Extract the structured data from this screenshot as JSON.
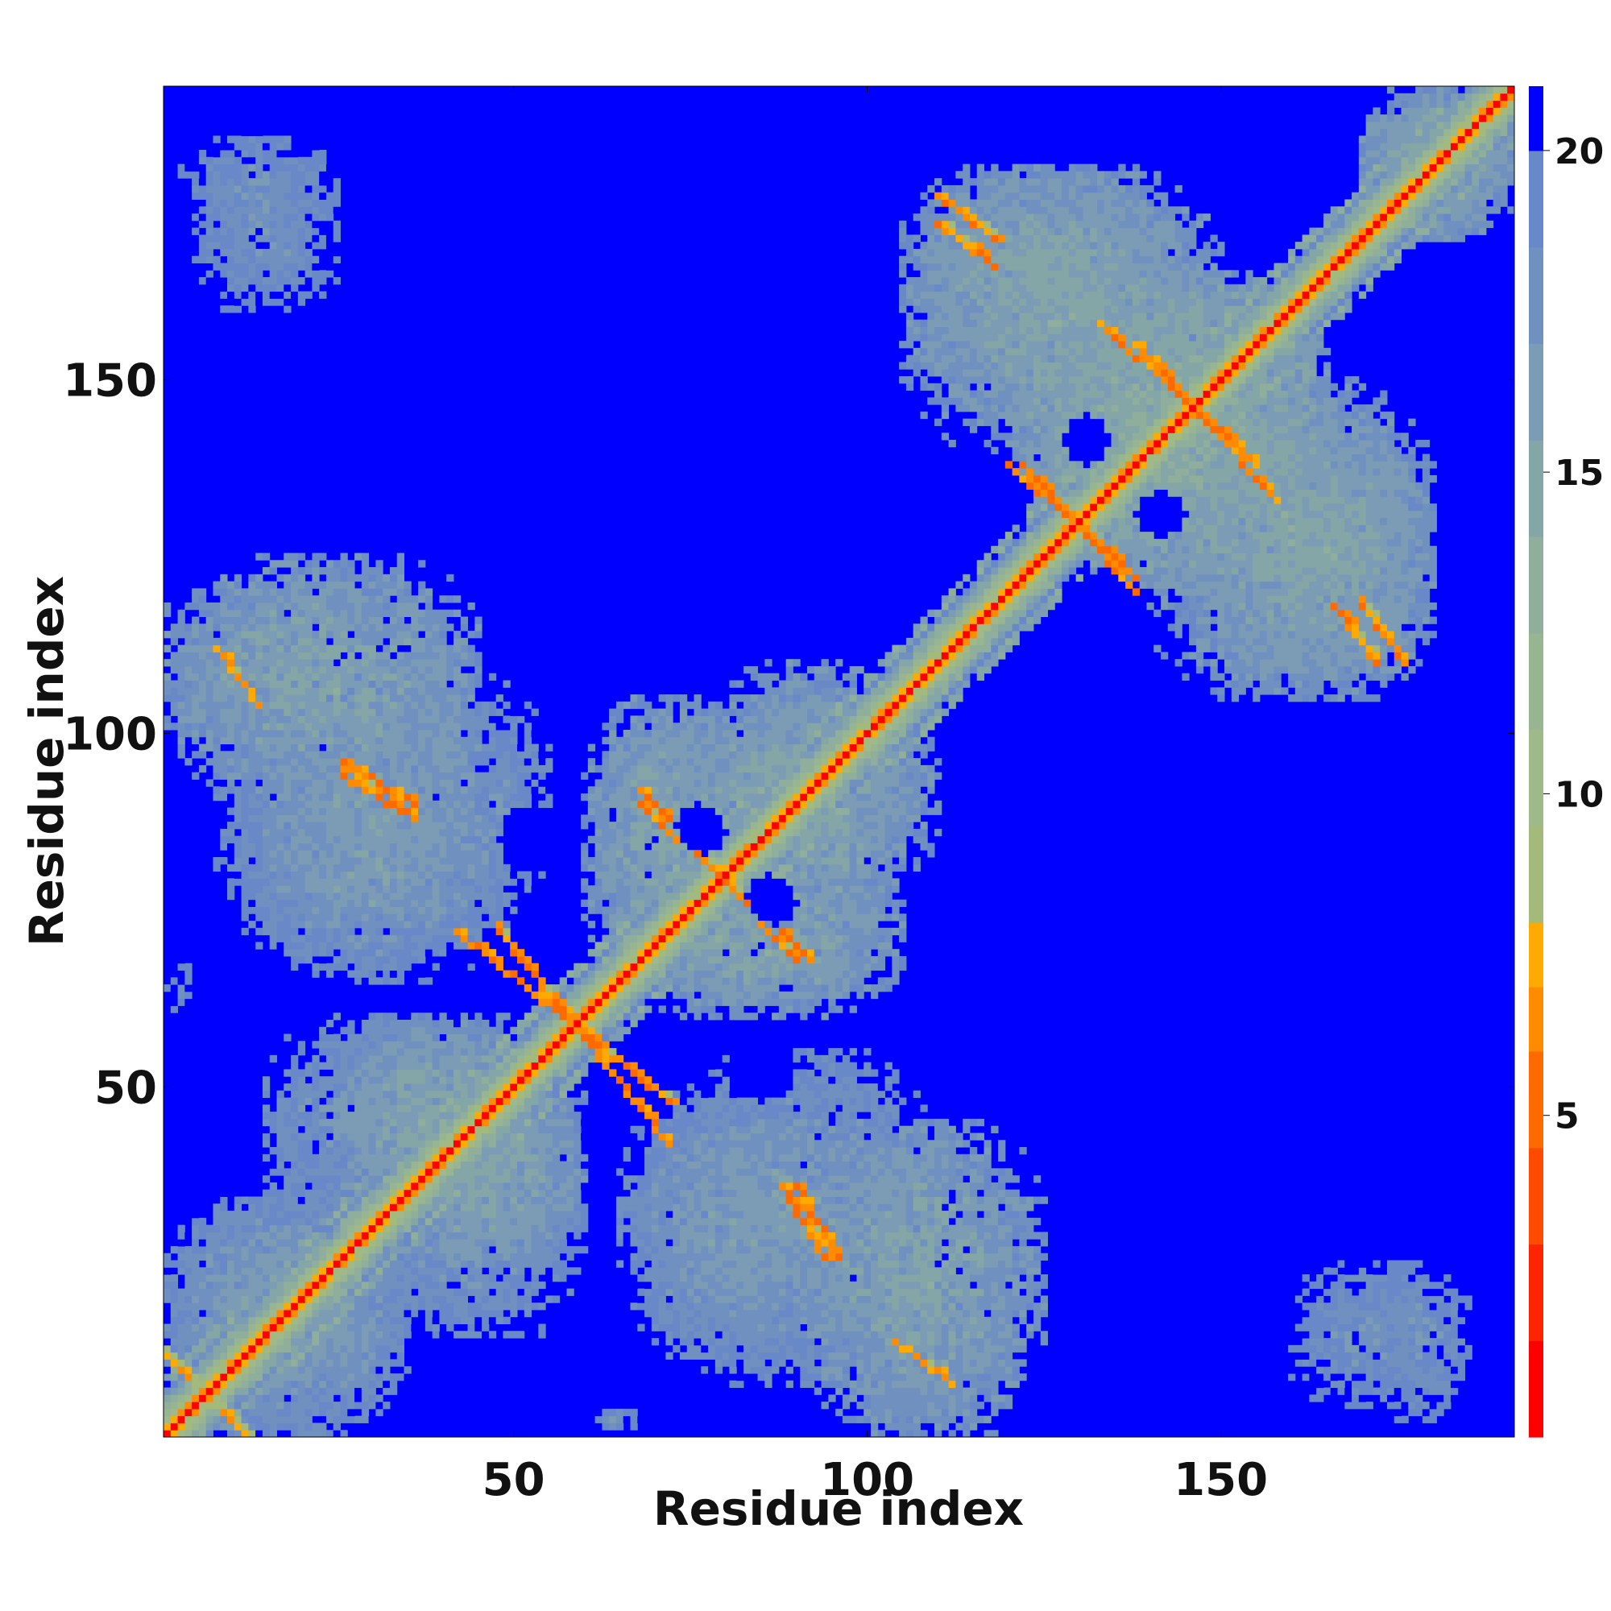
{
  "chart_data": {
    "type": "heatmap",
    "description_kind": "residue contact distance map",
    "xlabel": "Residue index",
    "ylabel": "Residue index",
    "xlim": [
      1,
      191
    ],
    "ylim": [
      1,
      191
    ],
    "n_residues": 191,
    "x_ticks": [
      50,
      100,
      150
    ],
    "y_ticks": [
      50,
      100,
      150
    ],
    "x_tick_labels": [
      "50",
      "100",
      "150"
    ],
    "y_tick_labels": [
      "50",
      "100",
      "150"
    ],
    "colorbar": {
      "range": [
        0,
        21
      ],
      "ticks": [
        5,
        10,
        15,
        20
      ],
      "tick_labels": [
        "5",
        "10",
        "15",
        "20"
      ],
      "levels": [
        {
          "max": 1.5,
          "color": "#ff0000"
        },
        {
          "max": 3,
          "color": "#ff2400"
        },
        {
          "max": 4.5,
          "color": "#ff4b00"
        },
        {
          "max": 6,
          "color": "#ff6a00"
        },
        {
          "max": 7,
          "color": "#ff8c00"
        },
        {
          "max": 8,
          "color": "#ffaa00"
        },
        {
          "max": 9.5,
          "color": "#a4ba7a"
        },
        {
          "max": 11,
          "color": "#a0b98a"
        },
        {
          "max": 12.5,
          "color": "#98b592"
        },
        {
          "max": 14,
          "color": "#8fae9c"
        },
        {
          "max": 15.5,
          "color": "#85a6a6"
        },
        {
          "max": 17,
          "color": "#7b9cb4"
        },
        {
          "max": 18.5,
          "color": "#7090c0"
        },
        {
          "max": 20,
          "color": "#6888c8"
        },
        {
          "max": 21,
          "color": "#0000ff"
        }
      ]
    },
    "background_value": 21,
    "diagonal_value": 1,
    "features": [
      {
        "kind": "diagonal_band",
        "from": 1,
        "to": 191,
        "width": 2.2,
        "value": 7
      },
      {
        "kind": "diagonal_band",
        "from": 1,
        "to": 191,
        "width": 6,
        "value": 14
      },
      {
        "kind": "region",
        "x": [
          1,
          35
        ],
        "y": [
          1,
          35
        ],
        "value": 16
      },
      {
        "kind": "region",
        "x": [
          1,
          45
        ],
        "y": [
          90,
          125
        ],
        "value": 15
      },
      {
        "kind": "region",
        "x": [
          12,
          48
        ],
        "y": [
          65,
          95
        ],
        "value": 16
      },
      {
        "kind": "region",
        "x": [
          15,
          55
        ],
        "y": [
          28,
          60
        ],
        "value": 16
      },
      {
        "kind": "region",
        "x": [
          35,
          60
        ],
        "y": [
          25,
          55
        ],
        "value": 15
      },
      {
        "kind": "region",
        "x": [
          60,
          80
        ],
        "y": [
          65,
          105
        ],
        "value": 15
      },
      {
        "kind": "region",
        "x": [
          78,
          105
        ],
        "y": [
          65,
          110
        ],
        "value": 15
      },
      {
        "kind": "region",
        "x": [
          70,
          110
        ],
        "y": [
          8,
          55
        ],
        "value": 16
      },
      {
        "kind": "region",
        "x": [
          100,
          115
        ],
        "y": [
          1,
          25
        ],
        "value": 16
      },
      {
        "kind": "region",
        "x": [
          105,
          150
        ],
        "y": [
          140,
          180
        ],
        "value": 15
      },
      {
        "kind": "region",
        "x": [
          125,
          165
        ],
        "y": [
          120,
          165
        ],
        "value": 14
      },
      {
        "kind": "region",
        "x": [
          150,
          180
        ],
        "y": [
          105,
          145
        ],
        "value": 15
      },
      {
        "kind": "region",
        "x": [
          170,
          191
        ],
        "y": [
          170,
          191
        ],
        "value": 15
      },
      {
        "kind": "region",
        "x": [
          3,
          25
        ],
        "y": [
          170,
          185
        ],
        "value": 17
      },
      {
        "kind": "region",
        "x": [
          160,
          180
        ],
        "y": [
          5,
          25
        ],
        "value": 17
      },
      {
        "kind": "region",
        "x": [
          1,
          5
        ],
        "y": [
          60,
          68
        ],
        "value": 18
      },
      {
        "kind": "anti_diagonal",
        "x": [
          42,
          72
        ],
        "y": [
          72,
          48
        ],
        "value": 5
      },
      {
        "kind": "anti_diagonal",
        "x": [
          68,
          90
        ],
        "y": [
          92,
          68
        ],
        "value": 5
      },
      {
        "kind": "anti_diagonal",
        "x": [
          122,
          138
        ],
        "y": [
          138,
          120
        ],
        "value": 5
      },
      {
        "kind": "anti_diagonal",
        "x": [
          133,
          155
        ],
        "y": [
          158,
          138
        ],
        "value": 5
      },
      {
        "kind": "stripe",
        "x": [
          26,
          36
        ],
        "y": [
          96,
          90
        ],
        "value": 5
      },
      {
        "kind": "stripe",
        "x": [
          88,
          94
        ],
        "y": [
          36,
          26
        ],
        "value": 5
      },
      {
        "kind": "stripe",
        "x": [
          110,
          118
        ],
        "y": [
          176,
          170
        ],
        "value": 5
      },
      {
        "kind": "stripe",
        "x": [
          166,
          172
        ],
        "y": [
          118,
          110
        ],
        "value": 5
      },
      {
        "kind": "stripe",
        "x": [
          1,
          12
        ],
        "y": [
          12,
          1
        ],
        "value": 6
      },
      {
        "kind": "stripe",
        "x": [
          8,
          14
        ],
        "y": [
          112,
          104
        ],
        "value": 6
      },
      {
        "kind": "hole",
        "x": 77,
        "y": 86,
        "r": 3
      },
      {
        "kind": "hole",
        "x": 87,
        "y": 76,
        "r": 3
      },
      {
        "kind": "hole",
        "x": 131,
        "y": 142,
        "r": 3
      },
      {
        "kind": "hole",
        "x": 141,
        "y": 131,
        "r": 3
      },
      {
        "kind": "hole",
        "x": 53,
        "y": 85,
        "r": 5
      },
      {
        "kind": "hole",
        "x": 85,
        "y": 53,
        "r": 5
      }
    ]
  }
}
